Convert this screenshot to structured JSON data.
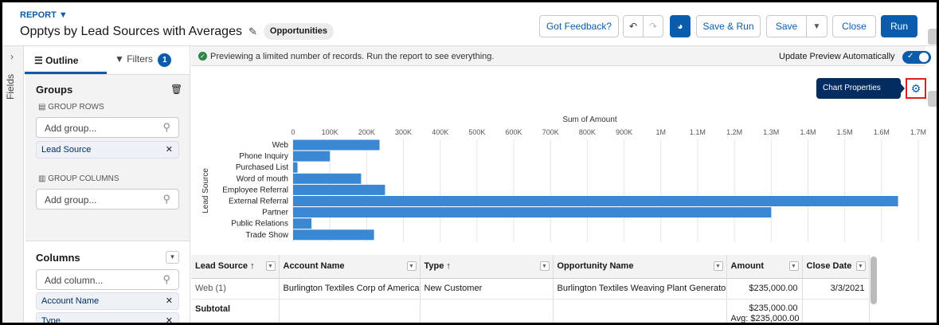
{
  "header": {
    "object_label": "REPORT",
    "title": "Opptys by Lead Sources with Averages",
    "report_type": "Opportunities"
  },
  "toolbar": {
    "feedback": "Got Feedback?",
    "save_run": "Save & Run",
    "save": "Save",
    "close": "Close",
    "run": "Run"
  },
  "fields_tab": "Fields",
  "tabs": {
    "outline": "Outline",
    "filters": "Filters",
    "filters_count": "1"
  },
  "groups": {
    "title": "Groups",
    "group_rows": "GROUP ROWS",
    "group_columns": "GROUP COLUMNS",
    "add_group_placeholder": "Add group...",
    "row_groups": [
      "Lead Source"
    ]
  },
  "columns": {
    "title": "Columns",
    "add_column_placeholder": "Add column...",
    "items": [
      "Account Name",
      "Type"
    ]
  },
  "preview": {
    "message": "Previewing a limited number of records. Run the report to see everything.",
    "toggle_label": "Update Preview Automatically",
    "toggle_on": true
  },
  "tooltip": "Chart Properties",
  "colors": {
    "brand": "#0b5cab",
    "bar": "#3a88d4",
    "success": "#2e844a"
  },
  "chart_data": {
    "type": "bar",
    "orientation": "horizontal",
    "xlabel": "Sum of Amount",
    "ylabel": "Lead Source",
    "xlim": [
      0,
      1700000
    ],
    "ticks": [
      {
        "v": 0,
        "l": "0"
      },
      {
        "v": 100000,
        "l": "100K"
      },
      {
        "v": 200000,
        "l": "200K"
      },
      {
        "v": 300000,
        "l": "300K"
      },
      {
        "v": 400000,
        "l": "400K"
      },
      {
        "v": 500000,
        "l": "500K"
      },
      {
        "v": 600000,
        "l": "600K"
      },
      {
        "v": 700000,
        "l": "700K"
      },
      {
        "v": 800000,
        "l": "800K"
      },
      {
        "v": 900000,
        "l": "900K"
      },
      {
        "v": 1000000,
        "l": "1M"
      },
      {
        "v": 1100000,
        "l": "1.1M"
      },
      {
        "v": 1200000,
        "l": "1.2M"
      },
      {
        "v": 1300000,
        "l": "1.3M"
      },
      {
        "v": 1400000,
        "l": "1.4M"
      },
      {
        "v": 1500000,
        "l": "1.5M"
      },
      {
        "v": 1600000,
        "l": "1.6M"
      },
      {
        "v": 1700000,
        "l": "1.7M"
      }
    ],
    "categories": [
      "Web",
      "Phone Inquiry",
      "Purchased List",
      "Word of mouth",
      "Employee Referral",
      "External Referral",
      "Partner",
      "Public Relations",
      "Trade Show"
    ],
    "values": [
      235000,
      100000,
      12000,
      185000,
      250000,
      1645000,
      1300000,
      50000,
      220000
    ],
    "grid": true
  },
  "table": {
    "headers": [
      "Lead Source ↑",
      "Account Name",
      "Type ↑",
      "Opportunity Name",
      "Amount",
      "Close Date"
    ],
    "row": [
      "Web (1)",
      "Burlington Textiles Corp of America",
      "New Customer",
      "Burlington Textiles Weaving Plant Generator",
      "$235,000.00",
      "3/3/2021"
    ],
    "subtotal_label": "Subtotal",
    "subtotal_sum": "$235,000.00",
    "subtotal_avg": "Avg: $235,000.00"
  }
}
